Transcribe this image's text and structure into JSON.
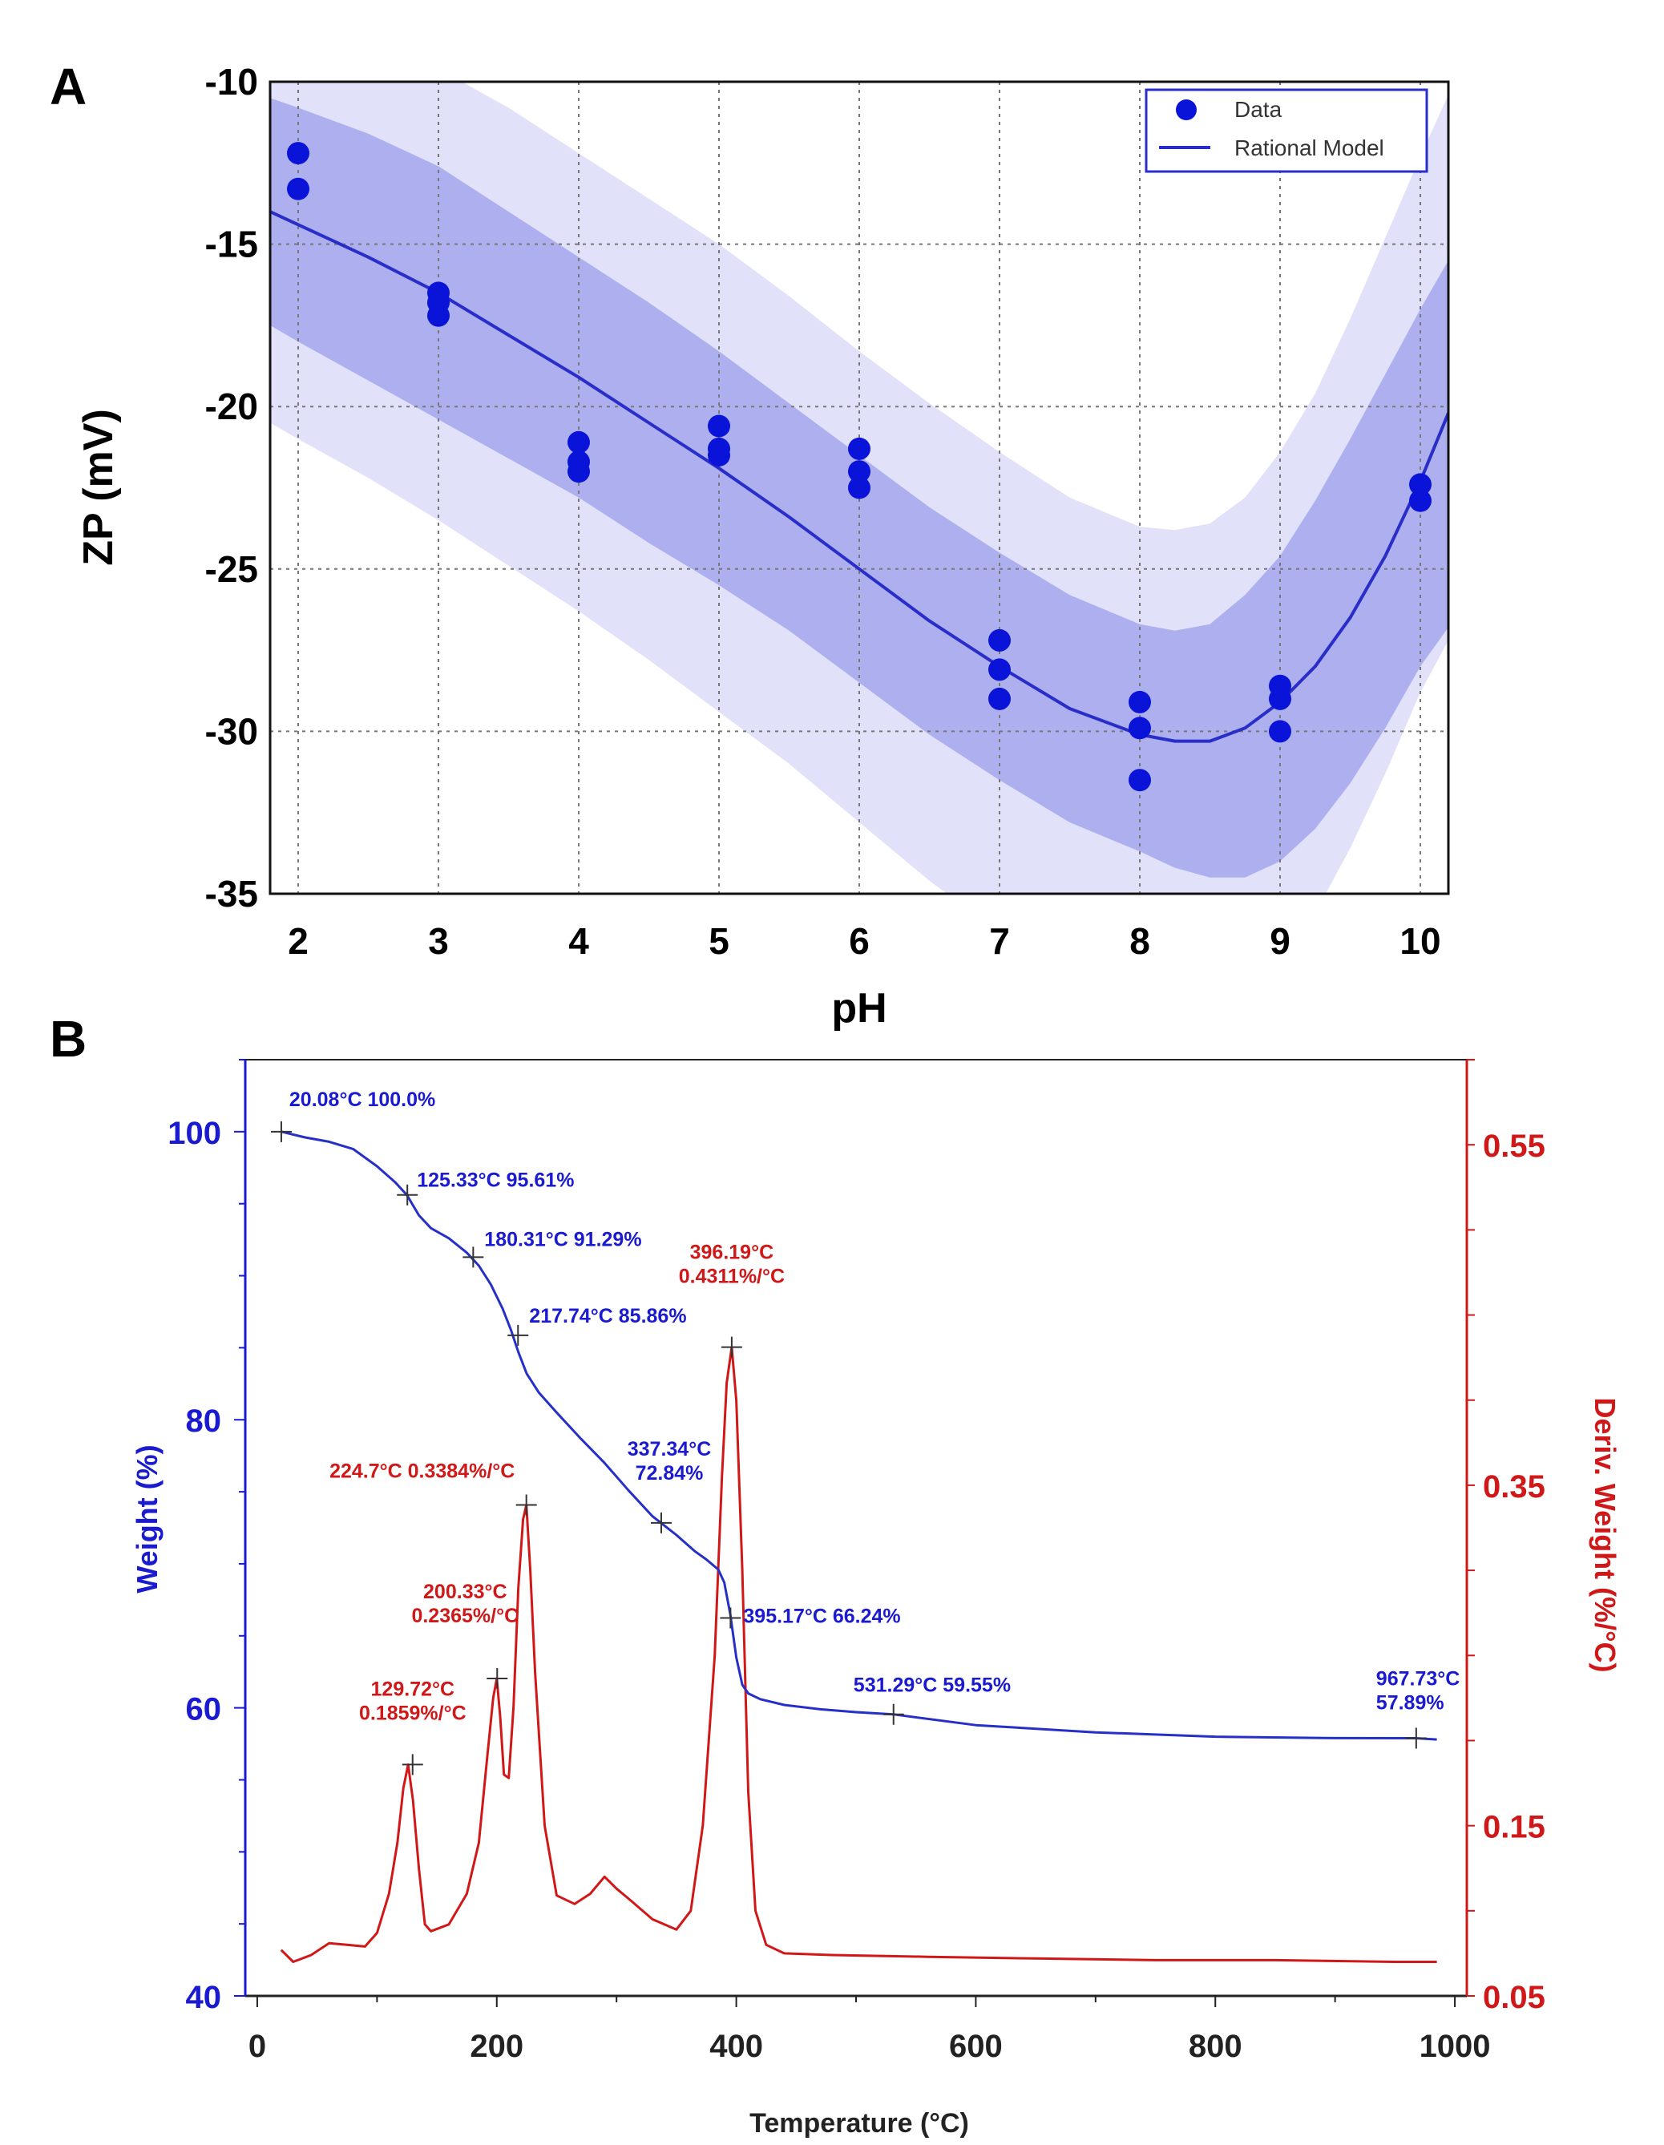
{
  "chart_data": [
    {
      "panel": "A",
      "type": "scatter",
      "xlabel": "pH",
      "ylabel": "ZP (mV)",
      "xlim": [
        1.8,
        10.2
      ],
      "ylim": [
        -35,
        -10
      ],
      "xticks": [
        "2",
        "3",
        "4",
        "5",
        "6",
        "7",
        "8",
        "9",
        "10"
      ],
      "yticks": [
        "-10",
        "-15",
        "-20",
        "-25",
        "-30",
        "-35"
      ],
      "grid": true,
      "legend": {
        "position": "top-right",
        "entries": [
          "Data",
          "Rational Model"
        ]
      },
      "series": [
        {
          "name": "Data",
          "kind": "points",
          "color": "#0a14d8",
          "points": [
            [
              2,
              -12.2
            ],
            [
              2,
              -13.3
            ],
            [
              3,
              -16.5
            ],
            [
              3,
              -16.8
            ],
            [
              3,
              -17.2
            ],
            [
              4,
              -21.1
            ],
            [
              4,
              -21.7
            ],
            [
              4,
              -22.0
            ],
            [
              5,
              -20.6
            ],
            [
              5,
              -21.3
            ],
            [
              5,
              -21.5
            ],
            [
              6,
              -21.3
            ],
            [
              6,
              -22.0
            ],
            [
              6,
              -22.5
            ],
            [
              7,
              -27.2
            ],
            [
              7,
              -28.1
            ],
            [
              7,
              -29.0
            ],
            [
              8,
              -29.1
            ],
            [
              8,
              -29.9
            ],
            [
              8,
              -31.5
            ],
            [
              9,
              -28.6
            ],
            [
              9,
              -29.0
            ],
            [
              9,
              -30.0
            ],
            [
              10,
              -22.4
            ],
            [
              10,
              -22.9
            ]
          ]
        },
        {
          "name": "Rational Model",
          "kind": "line",
          "color": "#2a2ec8",
          "x": [
            1.8,
            2,
            2.5,
            3,
            3.5,
            4,
            4.5,
            5,
            5.5,
            6,
            6.5,
            7,
            7.5,
            8,
            8.25,
            8.5,
            8.75,
            9,
            9.25,
            9.5,
            9.75,
            10,
            10.2
          ],
          "y": [
            -14.0,
            -14.4,
            -15.4,
            -16.5,
            -17.8,
            -19.1,
            -20.5,
            -21.9,
            -23.4,
            -25.0,
            -26.6,
            -28.0,
            -29.3,
            -30.1,
            -30.3,
            -30.3,
            -29.9,
            -29.1,
            -28.0,
            -26.5,
            -24.6,
            -22.3,
            -20.2
          ]
        },
        {
          "name": "inner band",
          "kind": "band",
          "color": "#8a8ee8",
          "upper": [
            -10.5,
            -10.8,
            -11.6,
            -12.6,
            -14.0,
            -15.4,
            -16.8,
            -18.3,
            -19.9,
            -21.5,
            -23.1,
            -24.5,
            -25.8,
            -26.7,
            -26.9,
            -26.7,
            -25.8,
            -24.6,
            -22.9,
            -21.0,
            -19.0,
            -17.0,
            -15.5
          ],
          "lower": [
            -17.5,
            -18.0,
            -19.2,
            -20.4,
            -21.6,
            -22.8,
            -24.2,
            -25.5,
            -26.9,
            -28.5,
            -30.1,
            -31.5,
            -32.8,
            -33.7,
            -34.2,
            -34.5,
            -34.5,
            -34.0,
            -33.0,
            -31.6,
            -29.9,
            -28.0,
            -26.8
          ]
        },
        {
          "name": "outer band",
          "kind": "band",
          "color": "#c8caf4",
          "upper": [
            -7.5,
            -7.8,
            -8.6,
            -9.6,
            -10.8,
            -12.2,
            -13.6,
            -15.0,
            -16.6,
            -18.3,
            -19.9,
            -21.4,
            -22.8,
            -23.7,
            -23.8,
            -23.6,
            -22.8,
            -21.4,
            -19.6,
            -17.3,
            -14.8,
            -12.3,
            -10.4
          ],
          "lower": [
            -20.5,
            -21.0,
            -22.2,
            -23.5,
            -24.9,
            -26.3,
            -27.8,
            -29.4,
            -31.0,
            -32.8,
            -34.6,
            -36.2,
            -37.5,
            -38.5,
            -38.8,
            -38.8,
            -38.2,
            -37.2,
            -35.6,
            -33.6,
            -31.3,
            -28.8,
            -27.2
          ]
        }
      ]
    },
    {
      "panel": "B",
      "type": "line",
      "xlabel": "Temperature (°C)",
      "ylabel": "Weight (%)",
      "y2label": "Deriv. Weight (%/°C)",
      "xlim": [
        -10,
        1010
      ],
      "ylim": [
        40,
        105
      ],
      "y2lim": [
        0.05,
        0.6
      ],
      "xticks": [
        "0",
        "200",
        "400",
        "600",
        "800",
        "1000"
      ],
      "yticks": [
        "40",
        "60",
        "80",
        "100"
      ],
      "y2ticks": [
        "0.05",
        "0.15",
        "0.35",
        "0.55"
      ],
      "series": [
        {
          "name": "Weight",
          "axis": "left",
          "color": "#2630c8",
          "x": [
            20,
            40,
            60,
            80,
            100,
            115,
            125,
            135,
            145,
            160,
            175,
            185,
            195,
            205,
            212,
            218,
            225,
            235,
            250,
            270,
            290,
            310,
            330,
            350,
            365,
            375,
            385,
            390,
            395,
            400,
            405,
            410,
            420,
            440,
            470,
            500,
            531,
            600,
            700,
            800,
            900,
            967,
            985
          ],
          "y": [
            100,
            99.6,
            99.3,
            98.8,
            97.6,
            96.5,
            95.6,
            94.2,
            93.3,
            92.6,
            91.6,
            90.7,
            89.4,
            87.7,
            86.2,
            84.7,
            83.2,
            81.9,
            80.5,
            78.7,
            77.0,
            75.1,
            73.3,
            72.0,
            70.9,
            70.3,
            69.6,
            68.7,
            66.5,
            63.5,
            61.6,
            61.0,
            60.6,
            60.2,
            59.9,
            59.7,
            59.55,
            58.8,
            58.3,
            58.0,
            57.9,
            57.89,
            57.8
          ]
        },
        {
          "name": "Deriv. Weight",
          "axis": "right",
          "color": "#d01818",
          "x": [
            20,
            30,
            45,
            60,
            75,
            90,
            100,
            110,
            117,
            122,
            126,
            130,
            135,
            140,
            145,
            160,
            175,
            185,
            192,
            197,
            200,
            203,
            206,
            210,
            214,
            218,
            222,
            224.7,
            228,
            232,
            240,
            250,
            265,
            278,
            290,
            300,
            312,
            330,
            350,
            362,
            372,
            382,
            388,
            392,
            396.19,
            400,
            405,
            410,
            416,
            425,
            440,
            480,
            560,
            650,
            750,
            850,
            950,
            985
          ],
          "y": [
            0.077,
            0.07,
            0.074,
            0.081,
            0.08,
            0.079,
            0.087,
            0.11,
            0.14,
            0.172,
            0.1859,
            0.165,
            0.125,
            0.092,
            0.088,
            0.092,
            0.11,
            0.14,
            0.19,
            0.225,
            0.2365,
            0.213,
            0.18,
            0.178,
            0.22,
            0.29,
            0.33,
            0.3384,
            0.3,
            0.24,
            0.15,
            0.109,
            0.104,
            0.11,
            0.12,
            0.113,
            0.106,
            0.095,
            0.089,
            0.1,
            0.15,
            0.25,
            0.355,
            0.41,
            0.4311,
            0.4,
            0.3,
            0.17,
            0.1,
            0.08,
            0.075,
            0.074,
            0.073,
            0.072,
            0.071,
            0.071,
            0.07,
            0.07
          ]
        }
      ],
      "annotations": [
        {
          "series": "Weight",
          "x": 20.08,
          "y": 100.0,
          "lines": [
            "20.08°C 100.0%"
          ]
        },
        {
          "series": "Weight",
          "x": 125.33,
          "y": 95.61,
          "lines": [
            "125.33°C 95.61%"
          ]
        },
        {
          "series": "Weight",
          "x": 180.31,
          "y": 91.29,
          "lines": [
            "180.31°C 91.29%"
          ]
        },
        {
          "series": "Weight",
          "x": 217.74,
          "y": 85.86,
          "lines": [
            "217.74°C 85.86%"
          ]
        },
        {
          "series": "Weight",
          "x": 337.34,
          "y": 72.84,
          "lines": [
            "337.34°C",
            "72.84%"
          ]
        },
        {
          "series": "Weight",
          "x": 395.17,
          "y": 66.24,
          "lines": [
            "395.17°C 66.24%"
          ]
        },
        {
          "series": "Weight",
          "x": 531.29,
          "y": 59.55,
          "lines": [
            "531.29°C 59.55%"
          ]
        },
        {
          "series": "Weight",
          "x": 967.73,
          "y": 57.89,
          "lines": [
            "967.73°C",
            "57.89%"
          ]
        },
        {
          "series": "Deriv. Weight",
          "x": 129.72,
          "y": 0.1859,
          "lines": [
            "129.72°C",
            "0.1859%/°C"
          ]
        },
        {
          "series": "Deriv. Weight",
          "x": 200.33,
          "y": 0.2365,
          "lines": [
            "200.33°C",
            "0.2365%/°C"
          ]
        },
        {
          "series": "Deriv. Weight",
          "x": 224.7,
          "y": 0.3384,
          "lines": [
            "224.7°C 0.3384%/°C"
          ]
        },
        {
          "series": "Deriv. Weight",
          "x": 396.19,
          "y": 0.4311,
          "lines": [
            "396.19°C",
            "0.4311%/°C"
          ]
        }
      ]
    }
  ],
  "panels": {
    "a_label": "A",
    "b_label": "B"
  },
  "colors": {
    "blue": "#1a1ad0",
    "red": "#d01818",
    "band_outer": "#c8caf4",
    "band_inner": "#8a8ee8",
    "dot": "#0a14d8",
    "model": "#2a2ec8",
    "weight_line": "#2630c8"
  }
}
